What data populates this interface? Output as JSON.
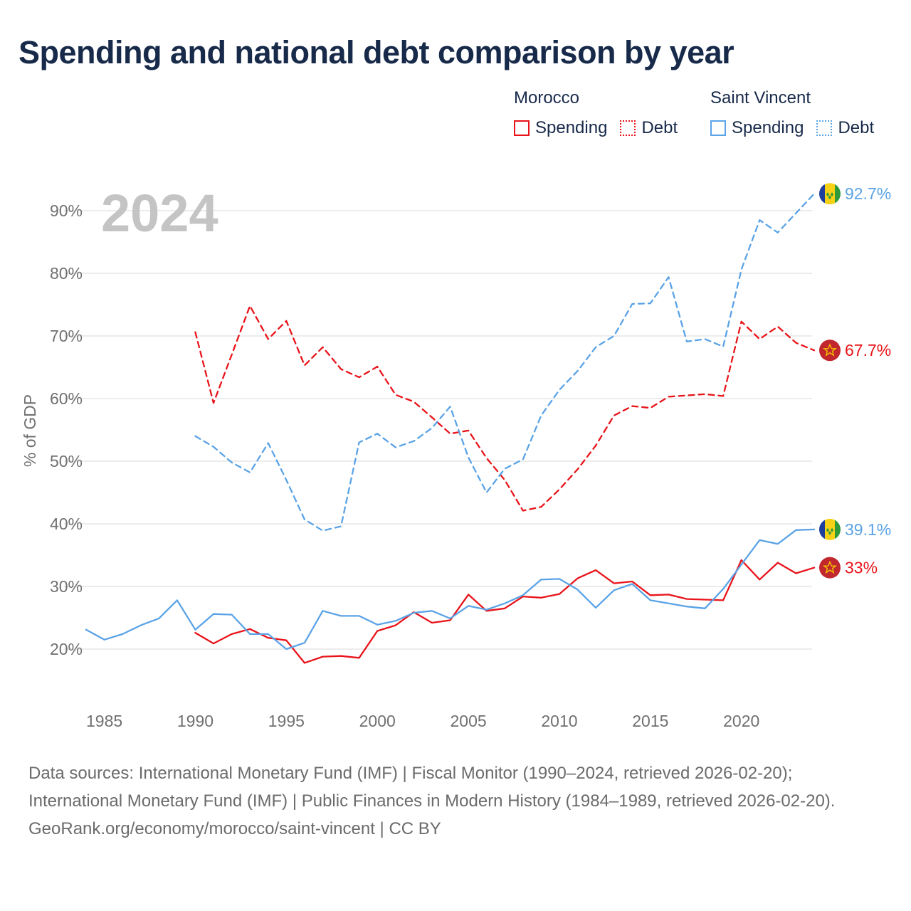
{
  "title": "Spending and national debt comparison by year",
  "legend": {
    "morocco": {
      "name": "Morocco",
      "spending": "Spending",
      "debt": "Debt"
    },
    "saint_vincent": {
      "name": "Saint Vincent",
      "spending": "Spending",
      "debt": "Debt"
    }
  },
  "colors": {
    "morocco": "#e8141a",
    "saint_vincent": "#5ba3e6",
    "grid": "#e6e6e6",
    "axis_text": "#707070",
    "year_watermark": "#c4c4c4"
  },
  "chart_data": {
    "type": "line",
    "title": "Spending and national debt comparison by year",
    "year_label": "2024",
    "ylabel": "% of GDP",
    "xlabel": "",
    "xlim": [
      1984,
      2024
    ],
    "ylim": [
      20,
      92.7
    ],
    "x_ticks": [
      1985,
      1990,
      1995,
      2000,
      2005,
      2010,
      2015,
      2020
    ],
    "y_ticks": [
      20,
      30,
      40,
      50,
      60,
      70,
      80,
      90
    ],
    "y_tick_labels": [
      "20%",
      "30%",
      "40%",
      "50%",
      "60%",
      "70%",
      "80%",
      "90%"
    ],
    "series": [
      {
        "name": "Morocco Spending",
        "country": "morocco",
        "style": "solid",
        "end_label": "33%",
        "x": [
          1990,
          1991,
          1992,
          1993,
          1994,
          1995,
          1996,
          1997,
          1998,
          1999,
          2000,
          2001,
          2002,
          2003,
          2004,
          2005,
          2006,
          2007,
          2008,
          2009,
          2010,
          2011,
          2012,
          2013,
          2014,
          2015,
          2016,
          2017,
          2018,
          2019,
          2020,
          2021,
          2022,
          2023,
          2024
        ],
        "values": [
          22.6,
          20.9,
          22.4,
          23.2,
          21.8,
          21.4,
          17.8,
          18.8,
          18.9,
          18.6,
          22.9,
          23.8,
          25.9,
          24.2,
          24.6,
          28.7,
          26.1,
          26.5,
          28.4,
          28.2,
          28.8,
          31.3,
          32.6,
          30.5,
          30.8,
          28.6,
          28.7,
          28.0,
          27.9,
          27.8,
          34.2,
          31.1,
          33.8,
          32.1,
          33.0
        ]
      },
      {
        "name": "Morocco Debt",
        "country": "morocco",
        "style": "dashed",
        "end_label": "67.7%",
        "x": [
          1990,
          1991,
          1992,
          1993,
          1994,
          1995,
          1996,
          1997,
          1998,
          1999,
          2000,
          2001,
          2002,
          2003,
          2004,
          2005,
          2006,
          2007,
          2008,
          2009,
          2010,
          2011,
          2012,
          2013,
          2014,
          2015,
          2016,
          2017,
          2018,
          2019,
          2020,
          2021,
          2022,
          2023,
          2024
        ],
        "values": [
          70.6,
          59.3,
          67.0,
          74.8,
          69.5,
          72.4,
          65.3,
          68.2,
          64.7,
          63.4,
          65.1,
          60.6,
          59.5,
          57.0,
          54.4,
          54.9,
          50.5,
          47.0,
          42.1,
          42.7,
          45.5,
          48.7,
          52.5,
          57.3,
          58.8,
          58.5,
          60.3,
          60.5,
          60.7,
          60.4,
          72.3,
          69.5,
          71.5,
          68.9,
          67.7
        ]
      },
      {
        "name": "Saint Vincent Spending",
        "country": "saint_vincent",
        "style": "solid",
        "end_label": "39.1%",
        "x": [
          1984,
          1985,
          1986,
          1987,
          1988,
          1989,
          1990,
          1991,
          1992,
          1993,
          1994,
          1995,
          1996,
          1997,
          1998,
          1999,
          2000,
          2001,
          2002,
          2003,
          2004,
          2005,
          2006,
          2007,
          2008,
          2009,
          2010,
          2011,
          2012,
          2013,
          2014,
          2015,
          2016,
          2017,
          2018,
          2019,
          2020,
          2021,
          2022,
          2023,
          2024
        ],
        "values": [
          23.1,
          21.5,
          22.4,
          23.8,
          24.9,
          27.8,
          23.1,
          25.6,
          25.5,
          22.4,
          22.4,
          20.0,
          21.0,
          26.1,
          25.3,
          25.3,
          23.9,
          24.5,
          25.8,
          26.1,
          24.9,
          26.9,
          26.3,
          27.3,
          28.6,
          31.1,
          31.2,
          29.5,
          26.6,
          29.4,
          30.4,
          27.8,
          27.3,
          26.8,
          26.5,
          29.6,
          33.5,
          37.4,
          36.8,
          39.0,
          39.1
        ]
      },
      {
        "name": "Saint Vincent Debt",
        "country": "saint_vincent",
        "style": "dashed",
        "end_label": "92.7%",
        "x": [
          1990,
          1991,
          1992,
          1993,
          1994,
          1995,
          1996,
          1997,
          1998,
          1999,
          2000,
          2001,
          2002,
          2003,
          2004,
          2005,
          2006,
          2007,
          2008,
          2009,
          2010,
          2011,
          2012,
          2013,
          2014,
          2015,
          2016,
          2017,
          2018,
          2019,
          2020,
          2021,
          2022,
          2023,
          2024
        ],
        "values": [
          54.0,
          52.3,
          49.8,
          48.2,
          52.9,
          47.0,
          40.7,
          38.9,
          39.6,
          53.0,
          54.4,
          52.2,
          53.2,
          55.3,
          58.7,
          50.6,
          45.0,
          48.8,
          50.3,
          57.3,
          61.4,
          64.4,
          68.2,
          70.0,
          75.1,
          75.2,
          79.4,
          69.1,
          69.5,
          68.3,
          80.6,
          88.5,
          86.5,
          89.6,
          92.7
        ]
      }
    ]
  },
  "footer": {
    "sources": "Data sources: International Monetary Fund (IMF) | Fiscal Monitor (1990–2024, retrieved 2026-02-20); International Monetary Fund (IMF) | Public Finances in Modern History (1984–1989, retrieved 2026-02-20).",
    "credit": "GeoRank.org/economy/morocco/saint-vincent | CC BY"
  }
}
